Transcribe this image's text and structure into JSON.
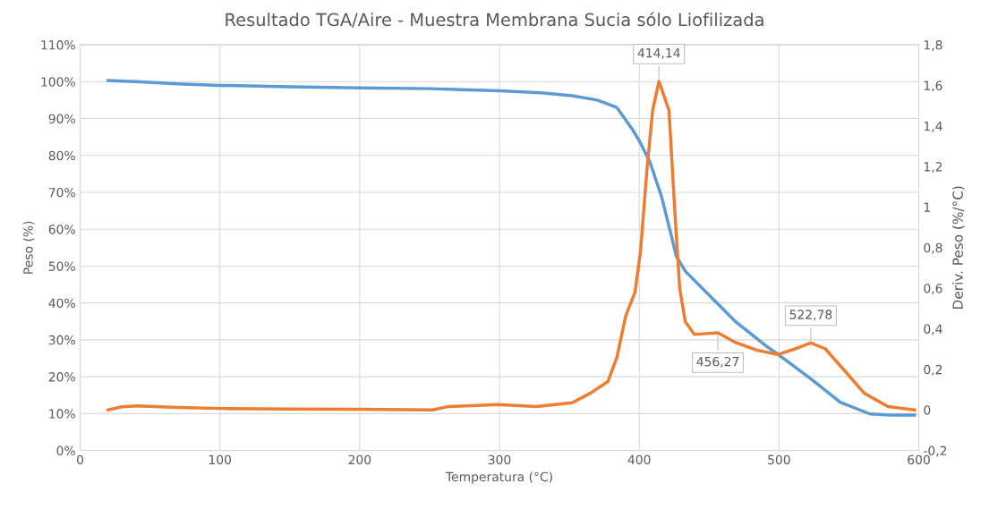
{
  "chart_data": {
    "type": "line",
    "title": "Resultado TGA/Aire - Muestra Membrana Sucia sólo Liofilizada",
    "xlabel": "Temperatura (°C)",
    "ylabel": "Peso (%)",
    "y2label": "Deriv. Peso (%/°C)",
    "series": [
      {
        "type": "line",
        "color": "#5b9bd5",
        "x": [
          20,
          40,
          70,
          100,
          150,
          200,
          250,
          300,
          330,
          352,
          370,
          384,
          394.7,
          400,
          407.4,
          416,
          422.4,
          426.6,
          433,
          448,
          469,
          490.5,
          501,
          522.5,
          543.8,
          565,
          580,
          597
        ],
        "values": [
          100.3,
          100,
          99.4,
          99,
          98.6,
          98.3,
          98.1,
          97.5,
          97,
          96.2,
          95,
          93,
          87.3,
          84,
          78.5,
          68.8,
          59.1,
          52.6,
          48.6,
          42.9,
          34.9,
          28.4,
          25.6,
          19.5,
          13.1,
          9.9,
          9.6,
          9.6
        ]
      },
      {
        "type": "line",
        "color": "#ed7d31",
        "axis": "y2",
        "x": [
          20,
          30,
          41,
          70,
          100,
          150,
          200,
          252,
          263,
          299,
          326.5,
          352,
          365,
          377.6,
          384,
          390.4,
          397,
          401,
          405.5,
          409.6,
          414.14,
          421.3,
          425.6,
          429,
          433,
          439.4,
          456.27,
          469,
          484,
          499,
          512,
          522.78,
          533,
          548,
          561,
          578,
          597
        ],
        "values": [
          0,
          0.015,
          0.02,
          0.012,
          0.007,
          0.004,
          0.003,
          0,
          0.016,
          0.026,
          0.016,
          0.035,
          0.082,
          0.14,
          0.258,
          0.465,
          0.58,
          0.787,
          1.183,
          1.477,
          1.62,
          1.477,
          0.963,
          0.596,
          0.434,
          0.372,
          0.38,
          0.332,
          0.295,
          0.273,
          0.302,
          0.33,
          0.302,
          0.185,
          0.082,
          0.016,
          0
        ]
      }
    ],
    "xlim": [
      0,
      600
    ],
    "xticks": [
      0,
      100,
      200,
      300,
      400,
      500,
      600
    ],
    "ylim": [
      0,
      110
    ],
    "yticks": [
      {
        "value": 0,
        "label": "0%"
      },
      {
        "value": 10,
        "label": "10%"
      },
      {
        "value": 20,
        "label": "20%"
      },
      {
        "value": 30,
        "label": "30%"
      },
      {
        "value": 40,
        "label": "40%"
      },
      {
        "value": 50,
        "label": "50%"
      },
      {
        "value": 60,
        "label": "60%"
      },
      {
        "value": 70,
        "label": "70%"
      },
      {
        "value": 80,
        "label": "80%"
      },
      {
        "value": 90,
        "label": "90%"
      },
      {
        "value": 100,
        "label": "100%"
      },
      {
        "value": 110,
        "label": "110%"
      }
    ],
    "y2lim": [
      -0.2,
      1.8
    ],
    "y2ticks": [
      {
        "value": -0.2,
        "label": "-0,2"
      },
      0,
      {
        "value": 0.2,
        "label": "0,2"
      },
      {
        "value": 0.4,
        "label": "0,4"
      },
      {
        "value": 0.6,
        "label": "0,6"
      },
      {
        "value": 0.8,
        "label": "0,8"
      },
      1,
      {
        "value": 1.2,
        "label": "1,2"
      },
      {
        "value": 1.4,
        "label": "1,4"
      },
      {
        "value": 1.6,
        "label": "1,6"
      },
      {
        "value": 1.8,
        "label": "1,8"
      }
    ],
    "annotations": [
      "414,14",
      "456,27",
      "522,78"
    ],
    "grid": true,
    "marker": "none",
    "line_style": "solid"
  }
}
